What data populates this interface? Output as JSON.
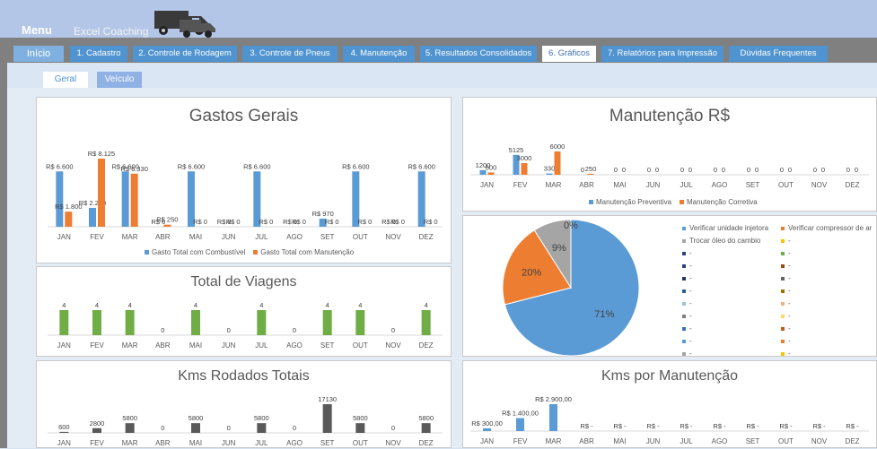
{
  "header": {
    "menu_label": "Menu",
    "brand": "Excel Coaching",
    "icon": "truck-icon"
  },
  "tabs": [
    {
      "label": "Início"
    },
    {
      "label": "1. Cadastro"
    },
    {
      "label": "2. Controle de Rodagem"
    },
    {
      "label": "3. Controle de Pneus"
    },
    {
      "label": "4. Manutenção"
    },
    {
      "label": "5. Resultados Consolidados"
    },
    {
      "label": "6. Gráficos"
    },
    {
      "label": "7. Relatórios para Impressão"
    },
    {
      "label": "Dúvidas Frequentes"
    }
  ],
  "subtabs": [
    {
      "label": "Geral"
    },
    {
      "label": "Veículo"
    }
  ],
  "colors": {
    "blue": "#5b9bd5",
    "orange": "#ed7d31",
    "green": "#70ad47",
    "gray": "#a5a5a5",
    "dark": "#595959"
  },
  "chart_data": [
    {
      "type": "bar",
      "title": "Gastos Gerais",
      "categories": [
        "JAN",
        "FEV",
        "MAR",
        "ABR",
        "MAI",
        "JUN",
        "JUL",
        "AGO",
        "SET",
        "OUT",
        "NOV",
        "DEZ"
      ],
      "series": [
        {
          "name": "Gasto Total com Combustível",
          "values": [
            6600,
            2250,
            6600,
            0,
            6600,
            0,
            6600,
            0,
            970,
            6600,
            0,
            6600
          ],
          "labels": [
            "R$ 6.600",
            "R$ 2.250",
            "R$ 6.600",
            "R$ 0",
            "R$ 6.600",
            "R$ 0",
            "R$ 6.600",
            "R$ 0",
            "R$ 970",
            "R$ 6.600",
            "R$ 0",
            "R$ 6.600"
          ]
        },
        {
          "name": "Gasto Total com Manutenção",
          "values": [
            1800,
            8125,
            6330,
            250,
            0,
            0,
            0,
            0,
            0,
            0,
            0,
            0
          ],
          "labels": [
            "R$ 1.800",
            "R$ 8.125",
            "R$ 6.330",
            "R$ 250",
            "R$ 0",
            "R$ 0",
            "R$ 0",
            "R$ 0",
            "R$ 0",
            "R$ 0",
            "R$ 0",
            "R$ 0"
          ]
        }
      ]
    },
    {
      "type": "bar",
      "title": "Manutenção R$",
      "categories": [
        "JAN",
        "FEV",
        "MAR",
        "ABR",
        "MAI",
        "JUN",
        "JUL",
        "AGO",
        "SET",
        "OUT",
        "NOV",
        "DEZ"
      ],
      "series": [
        {
          "name": "Manutenção Preventiva",
          "values": [
            1200,
            5125,
            330,
            0,
            0,
            0,
            0,
            0,
            0,
            0,
            0,
            0
          ]
        },
        {
          "name": "Manutenção Corretiva",
          "values": [
            600,
            3000,
            6000,
            250,
            0,
            0,
            0,
            0,
            0,
            0,
            0,
            0
          ]
        }
      ]
    },
    {
      "type": "bar",
      "title": "Total de Viagens",
      "categories": [
        "JAN",
        "FEV",
        "MAR",
        "ABR",
        "MAI",
        "JUN",
        "JUL",
        "AGO",
        "SET",
        "OUT",
        "NOV",
        "DEZ"
      ],
      "values": [
        4,
        4,
        4,
        0,
        4,
        0,
        4,
        0,
        4,
        4,
        0,
        4
      ]
    },
    {
      "type": "pie",
      "slices": [
        {
          "name": "Verificar unidade injetora",
          "value": 71,
          "label": "71%"
        },
        {
          "name": "Verificar compressor de ar",
          "value": 20,
          "label": "20%"
        },
        {
          "name": "Trocar óleo do cambio",
          "value": 9,
          "label": "9%"
        },
        {
          "name": "-",
          "value": 0,
          "label": "0%"
        }
      ],
      "legend_extra": [
        "-",
        "-",
        "-",
        "-",
        "-",
        "-",
        "-",
        "-",
        "-",
        "-",
        "-",
        "-",
        "-",
        "-",
        "-",
        "-",
        "-",
        "-",
        "-",
        "-",
        "-"
      ]
    },
    {
      "type": "bar",
      "title": "Kms Rodados Totais",
      "categories": [
        "JAN",
        "FEV",
        "MAR",
        "ABR",
        "MAI",
        "JUN",
        "JUL",
        "AGO",
        "SET",
        "OUT",
        "NOV",
        "DEZ"
      ],
      "values": [
        600,
        2800,
        5800,
        0,
        5800,
        0,
        5800,
        0,
        17130,
        5800,
        0,
        5800
      ]
    },
    {
      "type": "bar",
      "title": "Kms por Manutenção",
      "categories": [
        "JAN",
        "FEV",
        "MAR",
        "ABR",
        "MAI",
        "JUN",
        "JUL",
        "AGO",
        "SET",
        "OUT",
        "NOV",
        "DEZ"
      ],
      "values": [
        300,
        1400,
        2900,
        0,
        0,
        0,
        0,
        0,
        0,
        0,
        0,
        0
      ],
      "labels": [
        "R$ 300,00",
        "R$ 1.400,00",
        "R$ 2.900,00",
        "R$ -",
        "R$ -",
        "R$ -",
        "R$ -",
        "R$ -",
        "R$ -",
        "R$ -",
        "R$ -",
        "R$ -"
      ]
    }
  ]
}
